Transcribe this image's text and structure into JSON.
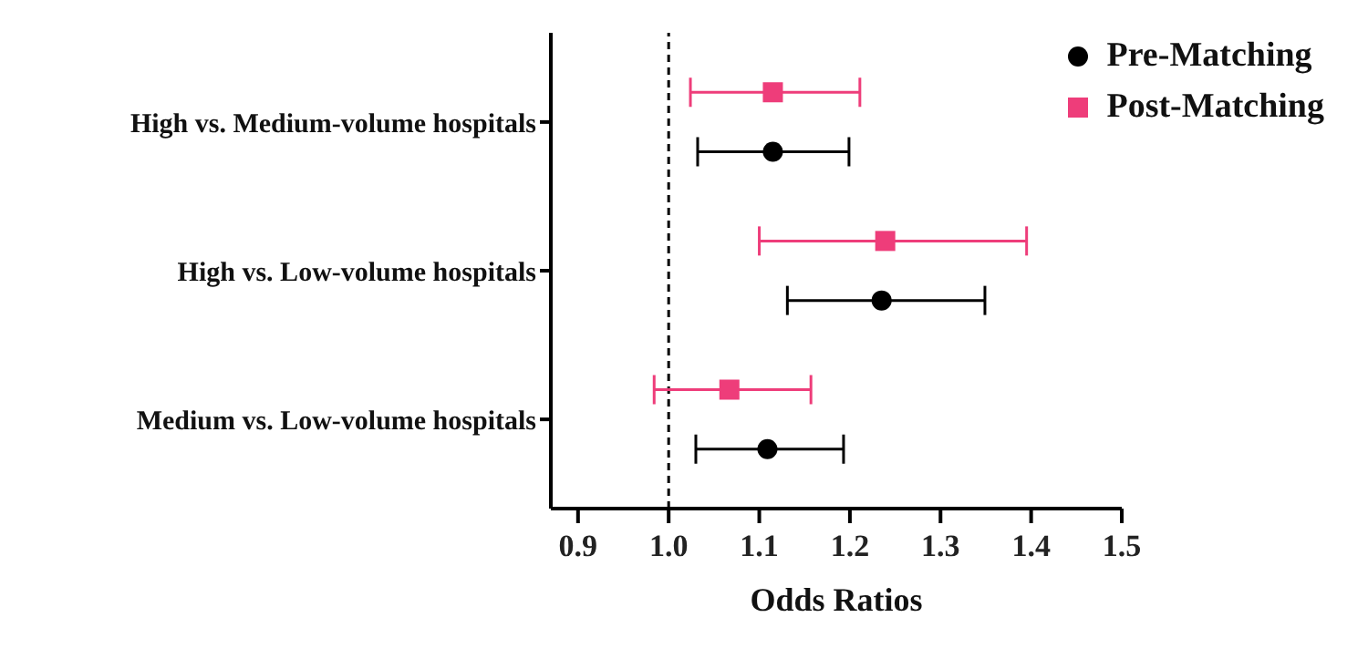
{
  "chart_data": {
    "type": "scatter",
    "orientation": "horizontal",
    "xlabel": "Odds Ratios",
    "categories": [
      "High vs. Medium-volume hospitals",
      "High vs. Low-volume hospitals",
      "Medium vs. Low-volume hospitals"
    ],
    "series": [
      {
        "name": "Pre-Matching",
        "color": "#000000",
        "marker": "circle",
        "values": [
          1.115,
          1.235,
          1.109
        ],
        "errors": [
          [
            1.032,
            1.199
          ],
          [
            1.131,
            1.349
          ],
          [
            1.03,
            1.193
          ]
        ]
      },
      {
        "name": "Post-Matching",
        "color": "#ee3d7a",
        "marker": "square",
        "values": [
          1.115,
          1.239,
          1.067
        ],
        "errors": [
          [
            1.024,
            1.211
          ],
          [
            1.1,
            1.395
          ],
          [
            0.984,
            1.157
          ]
        ]
      }
    ],
    "xlim": [
      0.87,
      1.5
    ],
    "xticks": [
      0.9,
      {
        "value": 1.0,
        "label": "1.0"
      },
      1.1,
      1.2,
      1.3,
      1.4,
      1.5
    ],
    "ref_lines": [
      {
        "axis": "x",
        "value": 1.0,
        "color": "#000000",
        "line_style": "dashed"
      }
    ],
    "grid": false,
    "legend": "top right"
  }
}
